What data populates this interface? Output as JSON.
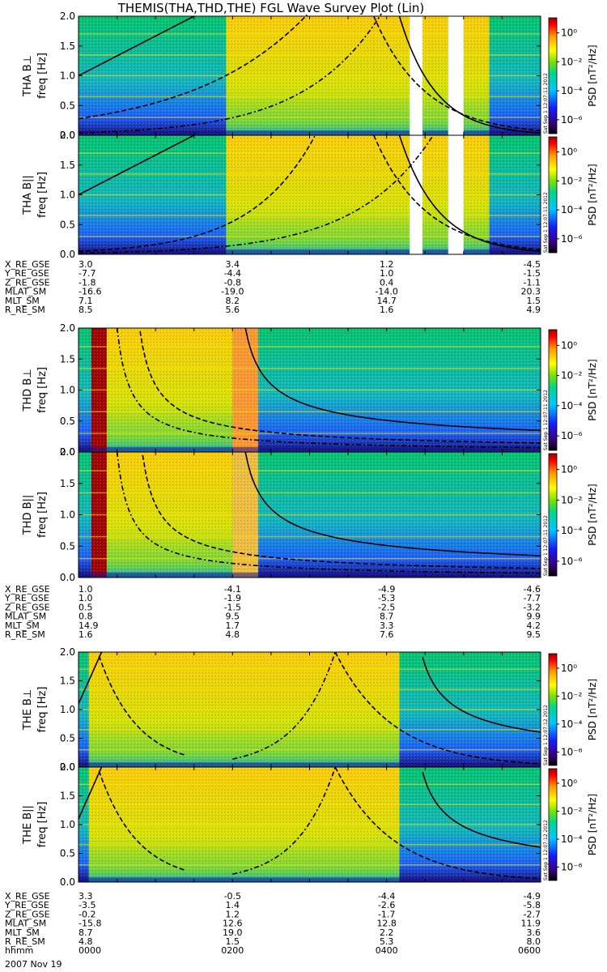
{
  "title": "THEMIS(THA,THD,THE) FGL Wave Survey Plot (Lin)",
  "date_label": "2007 Nov 19",
  "ylabel_unit": "freq [Hz]",
  "colorbar_label": "PSD [nT²/Hz]",
  "colorbar_ticks": [
    "10⁰",
    "10⁻²",
    "10⁻⁴",
    "10⁻⁶"
  ],
  "stamp_text": "Sat Sep  1 12:07:11 2012",
  "stamp_text_e": "Sat Sep  1 12:07:12 2012",
  "probes": [
    {
      "panels": [
        {
          "ylabel": "THA B⊥"
        },
        {
          "ylabel": "THA B||"
        }
      ],
      "orbit": {
        "rows": [
          "X_RE_GSE",
          "Y_RE_GSE",
          "Z_RE_GSE",
          "MLAT_SM",
          "MLT_SM",
          "R_RE_SM"
        ],
        "values": [
          [
            "3.0",
            "3.4",
            "1.2",
            "-4.5"
          ],
          [
            "-7.7",
            "-4.4",
            "1.0",
            "-1.5"
          ],
          [
            "-1.8",
            "-0.8",
            "0.4",
            "-1.1"
          ],
          [
            "-16.6",
            "-19.0",
            "-14.0",
            "20.3"
          ],
          [
            "7.1",
            "8.2",
            "14.7",
            "1.5"
          ],
          [
            "8.5",
            "5.6",
            "1.6",
            "4.9"
          ]
        ]
      }
    },
    {
      "panels": [
        {
          "ylabel": "THD B⊥"
        },
        {
          "ylabel": "THD B||"
        }
      ],
      "orbit": {
        "rows": [
          "X_RE_GSE",
          "Y_RE_GSE",
          "Z_RE_GSE",
          "MLAT_SM",
          "MLT_SM",
          "R_RE_SM"
        ],
        "values": [
          [
            "1.0",
            "-4.1",
            "-4.9",
            "-4.6"
          ],
          [
            "1.0",
            "-1.9",
            "-5.3",
            "-7.7"
          ],
          [
            "0.5",
            "-1.5",
            "-2.5",
            "-3.2"
          ],
          [
            "0.8",
            "9.5",
            "8.7",
            "9.9"
          ],
          [
            "14.9",
            "1.7",
            "3.3",
            "4.2"
          ],
          [
            "1.6",
            "4.8",
            "7.6",
            "9.5"
          ]
        ]
      }
    },
    {
      "panels": [
        {
          "ylabel": "THE B⊥"
        },
        {
          "ylabel": "THE B||"
        }
      ],
      "orbit": {
        "rows": [
          "X_RE_GSE",
          "Y_RE_GSE",
          "Z_RE_GSE",
          "MLAT_SM",
          "MLT_SM",
          "R_RE_SM",
          "hhmm"
        ],
        "values": [
          [
            "3.3",
            "-0.5",
            "-4.4",
            "-4.9"
          ],
          [
            "-3.5",
            "1.4",
            "-2.6",
            "-5.8"
          ],
          [
            "-0.2",
            "1.2",
            "-1.7",
            "-2.7"
          ],
          [
            "-15.8",
            "12.6",
            "12.8",
            "11.9"
          ],
          [
            "8.7",
            "19.0",
            "2.2",
            "3.6"
          ],
          [
            "4.8",
            "1.5",
            "5.3",
            "8.0"
          ],
          [
            "0000",
            "0200",
            "0400",
            "0600"
          ]
        ]
      }
    }
  ],
  "chart_data": {
    "type": "heatmap",
    "title": "THEMIS(THA,THD,THE) FGL Wave Survey Plot (Lin)",
    "x": {
      "label": "hhmm",
      "ticks": [
        "0000",
        "0200",
        "0400",
        "0600"
      ],
      "range": [
        0,
        360
      ]
    },
    "y": {
      "label": "freq [Hz]",
      "ticks": [
        0.0,
        0.5,
        1.0,
        1.5,
        2.0
      ],
      "range": [
        0,
        2.0
      ]
    },
    "colorbar": {
      "label": "PSD [nT²/Hz]",
      "scale": "log",
      "ticks": [
        "10⁰",
        "10⁻²",
        "10⁻⁴",
        "10⁻⁶"
      ],
      "range_exponent": [
        -7,
        1
      ]
    },
    "panels": [
      "THA B⊥",
      "THA B||",
      "THD B⊥",
      "THD B||",
      "THE B⊥",
      "THE B||"
    ],
    "date": "2007 Nov 19"
  }
}
